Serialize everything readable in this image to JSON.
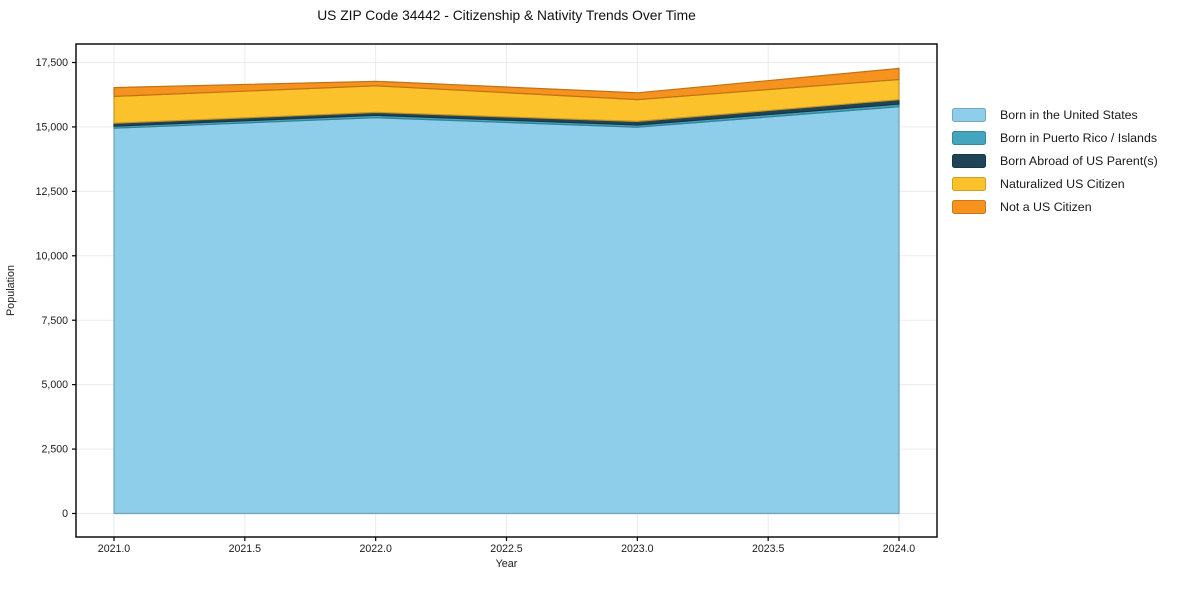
{
  "chart_data": {
    "type": "area",
    "stacked": true,
    "title": "US ZIP Code 34442 - Citizenship & Nativity Trends Over Time",
    "xlabel": "Year",
    "ylabel": "Population",
    "grid": true,
    "legend_position": "right",
    "xlim": [
      2021,
      2024
    ],
    "ylim": [
      0,
      17500
    ],
    "x": [
      2021,
      2022,
      2023,
      2024
    ],
    "x_ticks": [
      {
        "v": 2021.0,
        "label": "2021.0"
      },
      {
        "v": 2021.5,
        "label": "2021.5"
      },
      {
        "v": 2022.0,
        "label": "2022.0"
      },
      {
        "v": 2022.5,
        "label": "2022.5"
      },
      {
        "v": 2023.0,
        "label": "2023.0"
      },
      {
        "v": 2023.5,
        "label": "2023.5"
      },
      {
        "v": 2024.0,
        "label": "2024.0"
      }
    ],
    "y_ticks": [
      {
        "v": 0,
        "label": "0"
      },
      {
        "v": 2500,
        "label": "2,500"
      },
      {
        "v": 5000,
        "label": "5,000"
      },
      {
        "v": 7500,
        "label": "7,500"
      },
      {
        "v": 10000,
        "label": "10,000"
      },
      {
        "v": 12500,
        "label": "12,500"
      },
      {
        "v": 15000,
        "label": "15,000"
      },
      {
        "v": 17500,
        "label": "17,500"
      }
    ],
    "series": [
      {
        "name": "Born in the United States",
        "color": "#8ECEEA",
        "values": [
          14950,
          15360,
          14990,
          15785
        ]
      },
      {
        "name": "Born in Puerto Rico / Islands",
        "color": "#44A5BF",
        "values": [
          80,
          90,
          85,
          105
        ]
      },
      {
        "name": "Born Abroad of US Parent(s)",
        "color": "#1F4457",
        "values": [
          115,
          115,
          140,
          165
        ]
      },
      {
        "name": "Naturalized US Citizen",
        "color": "#FCC22C",
        "values": [
          1040,
          1030,
          845,
          785
        ]
      },
      {
        "name": "Not a US Citizen",
        "color": "#F6921E",
        "values": [
          340,
          175,
          265,
          430
        ]
      }
    ]
  }
}
